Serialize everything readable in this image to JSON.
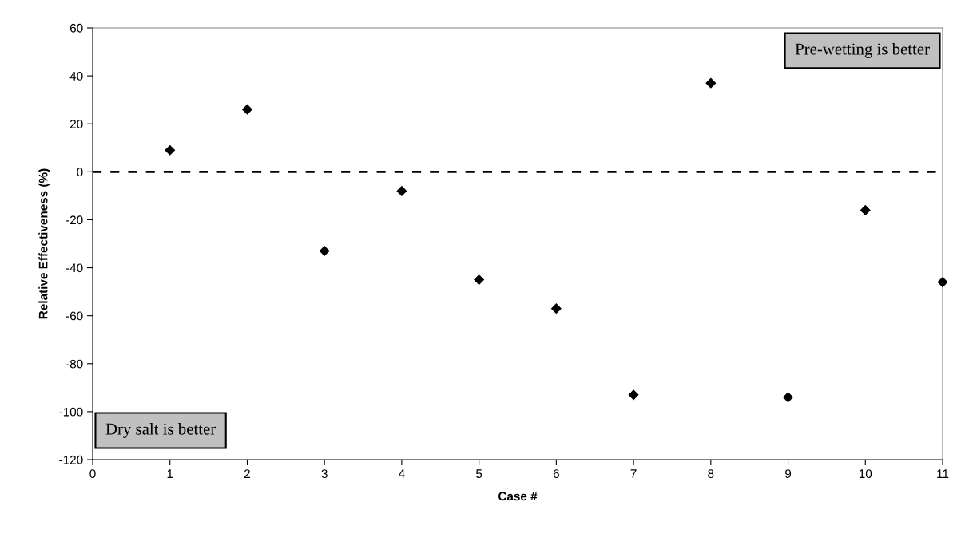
{
  "chart_data": {
    "type": "scatter",
    "xlabel": "Case #",
    "ylabel": "Relative Effectiveness (%)",
    "x": [
      1,
      2,
      3,
      4,
      5,
      6,
      7,
      8,
      9,
      10,
      11
    ],
    "series": [
      {
        "color": "#000000",
        "values": [
          9,
          26,
          -33,
          -8,
          -45,
          -57,
          -93,
          37,
          -94,
          -16,
          -46
        ]
      }
    ],
    "xlim": [
      0,
      11
    ],
    "xticks": [
      0,
      1,
      2,
      3,
      4,
      5,
      6,
      7,
      8,
      9,
      10,
      11
    ],
    "ylim": [
      -120,
      60
    ],
    "yticks": [
      -120,
      -100,
      -80,
      -60,
      -40,
      -20,
      0,
      20,
      40,
      60
    ],
    "ref_lines": [
      {
        "axis": "y",
        "value": 0,
        "color": "#000000",
        "line_style": "dashed"
      }
    ],
    "annotations": [
      "Pre-wetting is better",
      "Dry salt is better"
    ],
    "marker": "diamond",
    "grid": false,
    "legend": false
  }
}
